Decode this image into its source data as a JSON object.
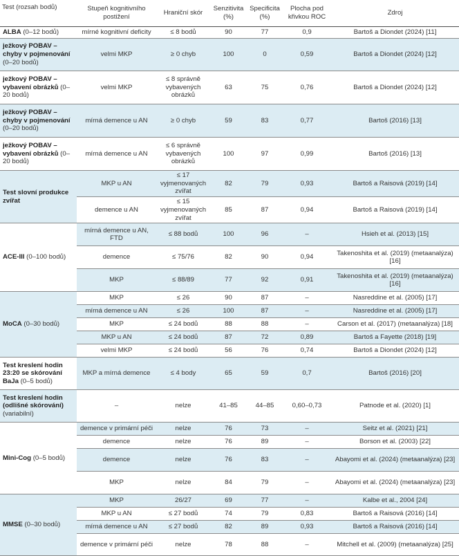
{
  "headers": [
    "Test (rozsah bodů)",
    "Stupeň kognitivního postižení",
    "Hraniční skór",
    "Senzitivita (%)",
    "Specificita (%)",
    "Plocha pod křivkou ROC",
    "Zdroj"
  ],
  "rows": [
    {
      "test_bold": "ALBA",
      "test_rest": " (0–12 bodů)",
      "degree": "mírné kognitivní deficity",
      "cutoff": "≤ 8 bodů",
      "sens": "90",
      "spec": "77",
      "auc": "0,9",
      "source": "Bartoš a Diondet (2024) [11]"
    },
    {
      "test_bold": "ježkový POBAV – chyby v pojmenování",
      "test_rest": " (0–20 bodů)",
      "degree": "velmi MKP",
      "cutoff": "≥ 0 chyb",
      "sens": "100",
      "spec": "0",
      "auc": "0,59",
      "source": "Bartoš a Diondet (2024) [12]"
    },
    {
      "test_bold": "ježkový POBAV – vybavení obrázků",
      "test_rest": " (0–20 bodů)",
      "degree": "velmi MKP",
      "cutoff": "≤ 8 správně vybavených obrázků",
      "sens": "63",
      "spec": "75",
      "auc": "0,76",
      "source": "Bartoš a Diondet (2024) [12]"
    },
    {
      "test_bold": "ježkový POBAV – chyby v pojmenování",
      "test_rest": " (0–20 bodů)",
      "degree": "mírná demence u AN",
      "cutoff": "≥ 0 chyb",
      "sens": "59",
      "spec": "83",
      "auc": "0,77",
      "source": "Bartoš (2016) [13]"
    },
    {
      "test_bold": "ježkový POBAV – vybavení obrázků",
      "test_rest": " (0–20 bodů)",
      "degree": "mírná demence u AN",
      "cutoff": "≤ 6 správně vybavených obrázků",
      "sens": "100",
      "spec": "97",
      "auc": "0,99",
      "source": "Bartoš (2016) [13]"
    },
    {
      "test_bold": "Test slovní produkce zvířat",
      "test_rest": "",
      "degree": "MKP u AN",
      "cutoff": "≤ 17 vyjmenovaných zvířat",
      "sens": "82",
      "spec": "79",
      "auc": "0,93",
      "source": "Bartoš a Raisová (2019) [14]"
    },
    {
      "degree": "demence u AN",
      "cutoff": "≤ 15 vyjmenovaných zvířat",
      "sens": "85",
      "spec": "87",
      "auc": "0,94",
      "source": "Bartoš a Raisová (2019) [14]"
    },
    {
      "test_bold": "ACE-III",
      "test_rest": " (0–100 bodů)",
      "degree": "mírná demence u AN, FTD",
      "cutoff": "≤ 88 bodů",
      "sens": "100",
      "spec": "96",
      "auc": "–",
      "source": "Hsieh et al. (2013) [15]"
    },
    {
      "degree": "demence",
      "cutoff": "≤ 75/76",
      "sens": "82",
      "spec": "90",
      "auc": "0,94",
      "source": "Takenoshita et al. (2019) (metaanalýza) [16]"
    },
    {
      "degree": "MKP",
      "cutoff": "≤ 88/89",
      "sens": "77",
      "spec": "92",
      "auc": "0,91",
      "source": "Takenoshita et al. (2019) (metaanalýza) [16]"
    },
    {
      "test_bold": "MoCA",
      "test_rest": " (0–30 bodů)",
      "degree": "MKP",
      "cutoff": "≤ 26",
      "sens": "90",
      "spec": "87",
      "auc": "–",
      "source": "Nasreddine et al. (2005) [17]"
    },
    {
      "degree": "mírná demence u AN",
      "cutoff": "≤ 26",
      "sens": "100",
      "spec": "87",
      "auc": "–",
      "source": "Nasreddine et al. (2005) [17]"
    },
    {
      "degree": "MKP",
      "cutoff": "≤ 24 bodů",
      "sens": "88",
      "spec": "88",
      "auc": "–",
      "source": "Carson et al. (2017) (metaanalýza) [18]"
    },
    {
      "degree": "MKP u AN",
      "cutoff": "≤ 24 bodů",
      "sens": "87",
      "spec": "72",
      "auc": "0,89",
      "source": "Bartoš a Fayette (2018) [19]"
    },
    {
      "degree": "velmi MKP",
      "cutoff": "≤ 24 bodů",
      "sens": "56",
      "spec": "76",
      "auc": "0,74",
      "source": "Bartoš a Diondet (2024) [12]"
    },
    {
      "test_bold": "Test kreslení hodin 23:20 se skórování BaJa",
      "test_rest": " (0–5 bodů)",
      "degree": "MKP a mírná demence",
      "cutoff": "≤ 4 body",
      "sens": "65",
      "spec": "59",
      "auc": "0,7",
      "source": "Bartoš (2016) [20]"
    },
    {
      "test_bold": "Test kreslení hodin (odlišné skórování)",
      "test_rest": " (variabilní)",
      "degree": "–",
      "cutoff": "nelze",
      "sens": "41–85",
      "spec": "44–85",
      "auc": "0,60–0,73",
      "source": "Patnode et al. (2020) [1]"
    },
    {
      "test_bold": "Mini-Cog",
      "test_rest": " (0–5 bodů)",
      "degree": "demence v primární péči",
      "cutoff": "nelze",
      "sens": "76",
      "spec": "73",
      "auc": "–",
      "source": "Seitz et al. (2021) [21]"
    },
    {
      "degree": "demence",
      "cutoff": "nelze",
      "sens": "76",
      "spec": "89",
      "auc": "–",
      "source": "Borson et al. (2003) [22]"
    },
    {
      "degree": "demence",
      "cutoff": "nelze",
      "sens": "76",
      "spec": "83",
      "auc": "–",
      "source": "Abayomi et al. (2024) (metaanalýza) [23]"
    },
    {
      "degree": "MKP",
      "cutoff": "nelze",
      "sens": "84",
      "spec": "79",
      "auc": "–",
      "source": "Abayomi et al. (2024) (metaanalýza) [23]"
    },
    {
      "test_bold": "MMSE",
      "test_rest": " (0–30 bodů)",
      "degree": "MKP",
      "cutoff": "26/27",
      "sens": "69",
      "spec": "77",
      "auc": "–",
      "source": "Kalbe et al., 2004 [24]"
    },
    {
      "degree": "MKP u AN",
      "cutoff": "≤ 27 bodů",
      "sens": "74",
      "spec": "79",
      "auc": "0,83",
      "source": "Bartoš a Raisová (2016) [14]"
    },
    {
      "degree": "mírná demence u AN",
      "cutoff": "≤ 27 bodů",
      "sens": "82",
      "spec": "89",
      "auc": "0,93",
      "source": "Bartoš a Raisová (2016) [14]"
    },
    {
      "degree": "demence v primární péči",
      "cutoff": "nelze",
      "sens": "78",
      "spec": "88",
      "auc": "–",
      "source": "Mitchell et al. (2009) (metaanalýza) [25]"
    }
  ]
}
